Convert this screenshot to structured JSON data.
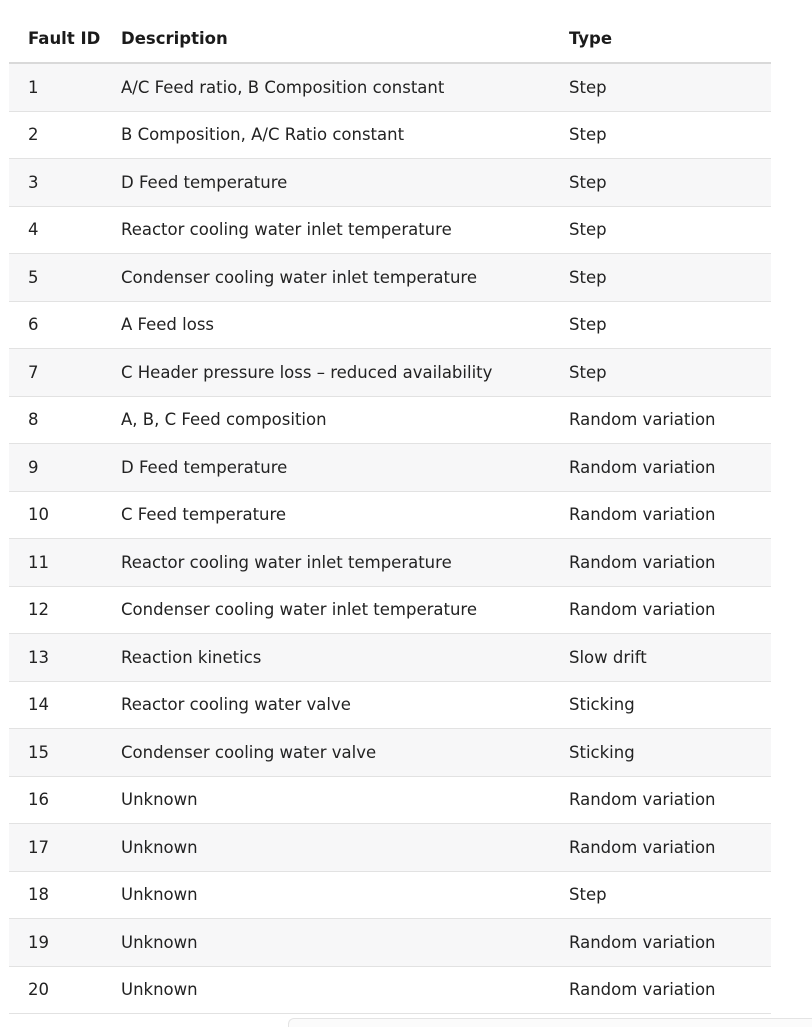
{
  "table": {
    "headers": {
      "id": "Fault ID",
      "description": "Description",
      "type": "Type"
    },
    "rows": [
      {
        "id": "1",
        "description": "A/C Feed ratio, B Composition constant",
        "type": "Step"
      },
      {
        "id": "2",
        "description": "B Composition, A/C Ratio constant",
        "type": "Step"
      },
      {
        "id": "3",
        "description": "D Feed temperature",
        "type": "Step"
      },
      {
        "id": "4",
        "description": "Reactor cooling water inlet temperature",
        "type": "Step"
      },
      {
        "id": "5",
        "description": "Condenser cooling water inlet temperature",
        "type": "Step"
      },
      {
        "id": "6",
        "description": "A Feed loss",
        "type": "Step"
      },
      {
        "id": "7",
        "description": "C Header pressure loss – reduced availability",
        "type": "Step"
      },
      {
        "id": "8",
        "description": "A, B, C Feed composition",
        "type": "Random variation"
      },
      {
        "id": "9",
        "description": "D Feed temperature",
        "type": "Random variation"
      },
      {
        "id": "10",
        "description": "C Feed temperature",
        "type": "Random variation"
      },
      {
        "id": "11",
        "description": "Reactor cooling water inlet temperature",
        "type": "Random variation"
      },
      {
        "id": "12",
        "description": "Condenser cooling water inlet temperature",
        "type": "Random variation"
      },
      {
        "id": "13",
        "description": "Reaction kinetics",
        "type": "Slow drift"
      },
      {
        "id": "14",
        "description": "Reactor cooling water valve",
        "type": "Sticking"
      },
      {
        "id": "15",
        "description": "Condenser cooling water valve",
        "type": "Sticking"
      },
      {
        "id": "16",
        "description": "Unknown",
        "type": "Random variation"
      },
      {
        "id": "17",
        "description": "Unknown",
        "type": "Random variation"
      },
      {
        "id": "18",
        "description": "Unknown",
        "type": "Step"
      },
      {
        "id": "19",
        "description": "Unknown",
        "type": "Random variation"
      },
      {
        "id": "20",
        "description": "Unknown",
        "type": "Random variation"
      }
    ]
  }
}
